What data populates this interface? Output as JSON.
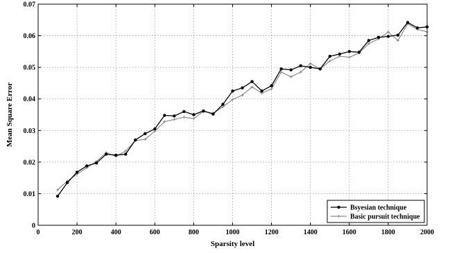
{
  "chart_data": {
    "type": "line",
    "xlabel": "Sparsity level",
    "ylabel": "Mean Square Error",
    "xlim": [
      0,
      2000
    ],
    "ylim": [
      0,
      0.07
    ],
    "xticks": [
      0,
      200,
      400,
      600,
      800,
      1000,
      1200,
      1400,
      1600,
      1800,
      2000
    ],
    "yticks": [
      0,
      0.01,
      0.02,
      0.03,
      0.04,
      0.05,
      0.06,
      0.07
    ],
    "xtick_labels": [
      "0",
      "200",
      "400",
      "600",
      "800",
      "1000",
      "1200",
      "1400",
      "1600",
      "1800",
      "2000"
    ],
    "ytick_labels": [
      "0",
      "0.01",
      "0.02",
      "0.03",
      "0.04",
      "0.05",
      "0.06",
      "0.07"
    ],
    "grid": true,
    "legend_position": "bottom-right",
    "x": [
      100,
      150,
      200,
      250,
      300,
      350,
      400,
      450,
      500,
      550,
      600,
      650,
      700,
      750,
      800,
      850,
      900,
      950,
      1000,
      1050,
      1100,
      1150,
      1200,
      1250,
      1300,
      1350,
      1400,
      1450,
      1500,
      1550,
      1600,
      1650,
      1700,
      1750,
      1800,
      1850,
      1900,
      1950,
      2000
    ],
    "series": [
      {
        "name": "Bsyesian technique",
        "color": "#000000",
        "marker": "dot",
        "values": [
          0.0092,
          0.0135,
          0.0168,
          0.0188,
          0.0197,
          0.0225,
          0.0222,
          0.0225,
          0.027,
          0.029,
          0.0305,
          0.0348,
          0.0346,
          0.036,
          0.035,
          0.0362,
          0.0352,
          0.0383,
          0.0425,
          0.0435,
          0.0455,
          0.0425,
          0.0442,
          0.0495,
          0.0492,
          0.0505,
          0.05,
          0.0495,
          0.0535,
          0.0542,
          0.055,
          0.0548,
          0.0585,
          0.0595,
          0.0598,
          0.0602,
          0.0642,
          0.0625,
          0.0628
        ]
      },
      {
        "name": "Basic pursuit technique",
        "color": "#8c8c8c",
        "marker": "plus",
        "values": [
          0.0112,
          0.014,
          0.0162,
          0.0182,
          0.0202,
          0.023,
          0.0218,
          0.0235,
          0.0268,
          0.0272,
          0.0298,
          0.0328,
          0.0335,
          0.0342,
          0.0338,
          0.036,
          0.0355,
          0.0375,
          0.0398,
          0.0412,
          0.0438,
          0.0418,
          0.0432,
          0.0485,
          0.047,
          0.0485,
          0.0512,
          0.0495,
          0.052,
          0.0535,
          0.0532,
          0.0545,
          0.0575,
          0.059,
          0.0612,
          0.0585,
          0.0638,
          0.062,
          0.0612
        ]
      }
    ]
  }
}
